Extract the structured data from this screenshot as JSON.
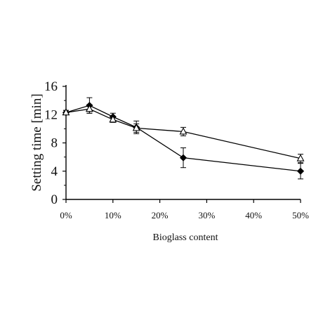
{
  "chart_data": {
    "type": "line",
    "title": "",
    "xlabel": "Bioglass content",
    "ylabel": "Setting time [min]",
    "x": [
      0,
      5,
      10,
      15,
      25,
      50
    ],
    "x_ticks": [
      0,
      10,
      20,
      30,
      40,
      50
    ],
    "x_tick_labels": [
      "0%",
      "10%",
      "20%",
      "30%",
      "40%",
      "50%"
    ],
    "xlim": [
      0,
      50
    ],
    "ylim": [
      0,
      16
    ],
    "y_ticks": [
      0,
      4,
      8,
      12,
      16
    ],
    "y_tick_labels": [
      "0",
      "4",
      "8",
      "12",
      "16"
    ],
    "grid": false,
    "legend": false,
    "series": [
      {
        "marker": "filled-diamond",
        "color": "#000000",
        "values": [
          12.3,
          13.3,
          11.7,
          10.2,
          5.9,
          4.0
        ],
        "errors": [
          0.3,
          1.1,
          0.5,
          0.9,
          1.4,
          1.1
        ]
      },
      {
        "marker": "open-triangle",
        "color": "#000000",
        "values": [
          12.3,
          12.8,
          11.3,
          10.1,
          9.6,
          5.8
        ],
        "errors": [
          0.3,
          0.6,
          0.4,
          0.6,
          0.6,
          0.6
        ]
      }
    ]
  }
}
